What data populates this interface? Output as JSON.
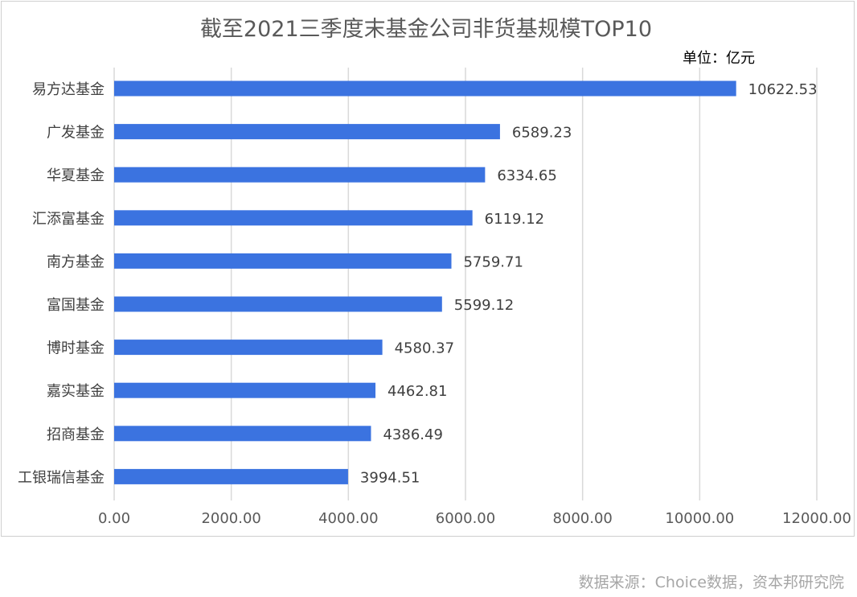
{
  "colors": {
    "bar": "#3b73e0",
    "grid": "#d9d9d9",
    "axis_text": "#595959",
    "label_text": "#404040"
  },
  "unit_label": "单位：亿元",
  "source": "数据来源：Choice数据，资本邦研究院",
  "chart_data": {
    "type": "bar",
    "orientation": "horizontal",
    "title": "截至2021三季度末基金公司非货基规模TOP10",
    "categories": [
      "易方达基金",
      "广发基金",
      "华夏基金",
      "汇添富基金",
      "南方基金",
      "富国基金",
      "博时基金",
      "嘉实基金",
      "招商基金",
      "工银瑞信基金"
    ],
    "values": [
      10622.53,
      6589.23,
      6334.65,
      6119.12,
      5759.71,
      5599.12,
      4580.37,
      4462.81,
      4386.49,
      3994.51
    ],
    "value_labels": [
      "10622.53",
      "6589.23",
      "6334.65",
      "6119.12",
      "5759.71",
      "5599.12",
      "4580.37",
      "4462.81",
      "4386.49",
      "3994.51"
    ],
    "xlim": [
      0,
      12000
    ],
    "x_ticks": [
      0,
      2000,
      4000,
      6000,
      8000,
      10000,
      12000
    ],
    "x_tick_labels": [
      "0.00",
      "2000.00",
      "4000.00",
      "6000.00",
      "8000.00",
      "10000.00",
      "12000.00"
    ],
    "xlabel": "",
    "ylabel": "",
    "grid": true
  }
}
